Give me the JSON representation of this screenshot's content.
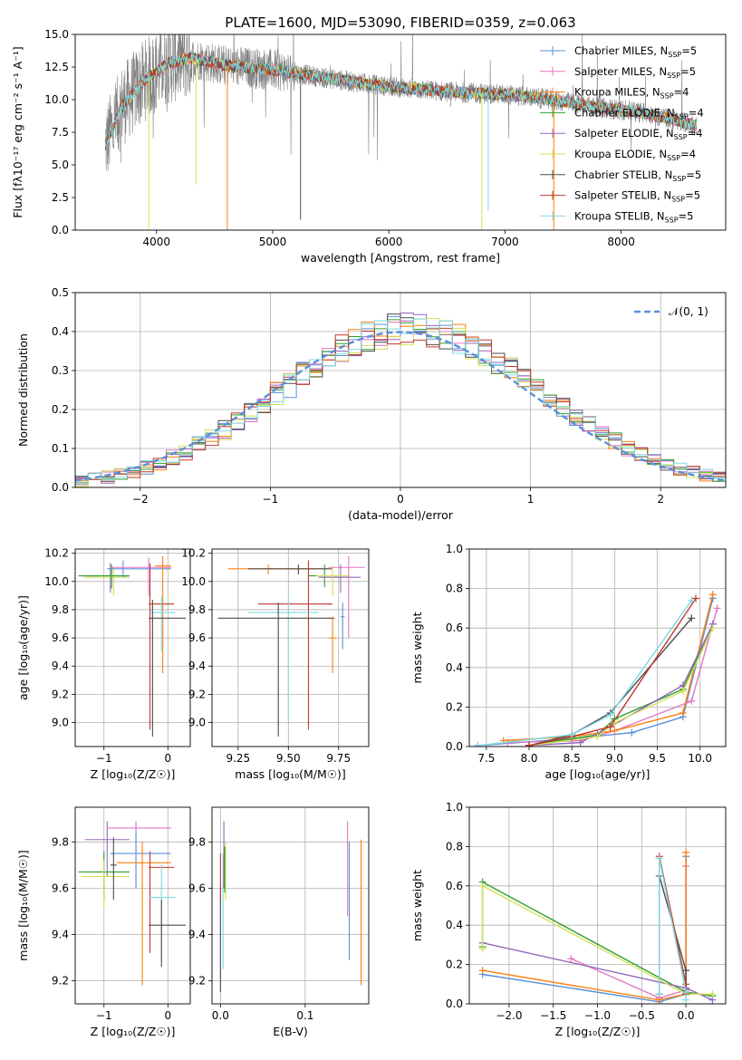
{
  "colors": {
    "Chabrier MILES": "#5b8fd9",
    "Salpeter MILES": "#e377c2",
    "Kroupa MILES": "#ff7f0e",
    "Chabrier ELODIE": "#2ca02c",
    "Salpeter ELODIE": "#9467bd",
    "Kroupa ELODIE": "#d4e157",
    "Chabrier STELIB": "#4d4d4d",
    "Salpeter STELIB": "#c0392b",
    "Kroupa STELIB": "#7fd8e0",
    "data": "#808080",
    "normal": "#5b8fd9"
  },
  "chart_data": [
    {
      "id": "spectrum",
      "type": "line",
      "title": "PLATE=1600, MJD=53090, FIBERID=0359, z=0.063",
      "xlabel": "wavelength [Angstrom, rest frame]",
      "ylabel": "Flux [fλ10⁻¹⁷ erg cm⁻² s⁻¹ A⁻¹]",
      "xlim": [
        3300,
        8900
      ],
      "ylim": [
        0,
        15
      ],
      "xticks": [
        4000,
        5000,
        6000,
        7000,
        8000
      ],
      "yticks": [
        0.0,
        2.5,
        5.0,
        7.5,
        10.0,
        12.5,
        15.0
      ],
      "xtick_labels": [
        "4000",
        "5000",
        "6000",
        "7000",
        "8000"
      ],
      "ytick_labels": [
        "0.0",
        "2.5",
        "5.0",
        "7.5",
        "10.0",
        "12.5",
        "15.0"
      ],
      "legend_placement": "upper-right",
      "legend": [
        {
          "label": "Chabrier MILES, N",
          "sub": "SSP",
          "tail": "=5",
          "model": "Chabrier MILES"
        },
        {
          "label": "Salpeter MILES, N",
          "sub": "SSP",
          "tail": "=5",
          "model": "Salpeter MILES"
        },
        {
          "label": "Kroupa MILES, N",
          "sub": "SSP",
          "tail": "=4",
          "model": "Kroupa MILES"
        },
        {
          "label": "Chabrier ELODIE, N",
          "sub": "SSP",
          "tail": "=4",
          "model": "Chabrier ELODIE"
        },
        {
          "label": "Salpeter ELODIE, N",
          "sub": "SSP",
          "tail": "=4",
          "model": "Salpeter ELODIE"
        },
        {
          "label": "Kroupa ELODIE, N",
          "sub": "SSP",
          "tail": "=4",
          "model": "Kroupa ELODIE"
        },
        {
          "label": "Chabrier STELIB, N",
          "sub": "SSP",
          "tail": "=5",
          "model": "Chabrier STELIB"
        },
        {
          "label": "Salpeter STELIB, N",
          "sub": "SSP",
          "tail": "=5",
          "model": "Salpeter STELIB"
        },
        {
          "label": "Kroupa STELIB, N",
          "sub": "SSP",
          "tail": "=5",
          "model": "Kroupa STELIB"
        }
      ],
      "continuum": {
        "x": [
          3560,
          3700,
          3900,
          4100,
          4300,
          4600,
          5000,
          5500,
          6000,
          6500,
          7000,
          7400,
          7800,
          8200,
          8650
        ],
        "y": [
          6.5,
          9.5,
          11.5,
          12.8,
          13.2,
          12.6,
          12.3,
          11.6,
          11.0,
          10.6,
          10.4,
          10.0,
          9.4,
          9.0,
          8.0
        ]
      },
      "absorption_dips": [
        {
          "x": 3933,
          "y": 0.0
        },
        {
          "x": 4340,
          "y": 3.5
        },
        {
          "x": 4610,
          "y": 0.0
        },
        {
          "x": 5240,
          "y": 0.8
        },
        {
          "x": 6800,
          "y": 0.0
        },
        {
          "x": 6855,
          "y": 1.5
        },
        {
          "x": 7420,
          "y": 0.0
        }
      ]
    },
    {
      "id": "residuals",
      "type": "histogram",
      "xlabel": "(data-model)/error",
      "ylabel": "Normed distribution",
      "xlim": [
        -2.5,
        2.5
      ],
      "ylim": [
        0,
        0.5
      ],
      "xticks": [
        -2,
        -1,
        0,
        1,
        2
      ],
      "yticks": [
        0.0,
        0.1,
        0.2,
        0.3,
        0.4,
        0.5
      ],
      "xtick_labels": [
        "−2",
        "−1",
        "0",
        "1",
        "2"
      ],
      "ytick_labels": [
        "0.0",
        "0.1",
        "0.2",
        "0.3",
        "0.4",
        "0.5"
      ],
      "legend_placement": "upper-right",
      "legend_label": "𝒩(0, 1)",
      "bin_width": 0.1
    },
    {
      "id": "age-z",
      "type": "errorbar",
      "xlabel": "Z [log₁₀(Z/Z☉)]",
      "ylabel": "age  [log₁₀(age/yr)]",
      "xlim": [
        -1.45,
        0.35
      ],
      "ylim": [
        8.83,
        10.23
      ],
      "xticks": [
        -1,
        0
      ],
      "yticks": [
        9.0,
        9.2,
        9.4,
        9.6,
        9.8,
        10.0,
        10.2
      ],
      "xtick_labels": [
        "−1",
        "0"
      ],
      "ytick_labels": [
        "9.0",
        "9.2",
        "9.4",
        "9.6",
        "9.8",
        "10.0",
        "10.2"
      ],
      "points": [
        {
          "model": "Salpeter ELODIE",
          "x": -0.9,
          "xlo": -1.4,
          "xhi": -0.6,
          "y": 10.04,
          "ylo": 9.92,
          "yhi": 10.13
        },
        {
          "model": "Kroupa ELODIE",
          "x": -0.85,
          "xlo": -1.3,
          "xhi": -0.6,
          "y": 10.03,
          "ylo": 9.9,
          "yhi": 10.1
        },
        {
          "model": "Chabrier ELODIE",
          "x": -0.88,
          "xlo": -1.35,
          "xhi": -0.62,
          "y": 10.04,
          "ylo": 9.95,
          "yhi": 10.12
        },
        {
          "model": "Chabrier MILES",
          "x": -0.7,
          "xlo": -0.95,
          "xhi": 0.05,
          "y": 10.09,
          "ylo": 10.03,
          "yhi": 10.15
        },
        {
          "model": "Salpeter MILES",
          "x": -0.3,
          "xlo": -0.9,
          "xhi": 0.05,
          "y": 10.1,
          "ylo": 9.9,
          "yhi": 10.17
        },
        {
          "model": "Kroupa MILES",
          "x": -0.08,
          "xlo": -0.2,
          "xhi": 0.05,
          "y": 10.11,
          "ylo": 9.35,
          "yhi": 10.18
        },
        {
          "model": "Salpeter STELIB",
          "x": -0.28,
          "xlo": -0.3,
          "xhi": 0.1,
          "y": 9.84,
          "ylo": 8.95,
          "yhi": 10.13
        },
        {
          "model": "Kroupa STELIB",
          "x": -0.1,
          "xlo": -0.3,
          "xhi": 0.12,
          "y": 9.78,
          "ylo": 9.5,
          "yhi": 9.9
        },
        {
          "model": "Chabrier STELIB",
          "x": -0.24,
          "xlo": -0.3,
          "xhi": 0.28,
          "y": 9.74,
          "ylo": 8.9,
          "yhi": 9.87
        }
      ]
    },
    {
      "id": "age-mass",
      "type": "errorbar",
      "xlabel": "mass [log₁₀(M/M☉)]",
      "ylabel": "",
      "xlim": [
        9.12,
        9.9
      ],
      "ylim": [
        8.83,
        10.23
      ],
      "xticks": [
        9.25,
        9.5,
        9.75
      ],
      "yticks": [
        9.0,
        9.2,
        9.4,
        9.6,
        9.8,
        10.0,
        10.2
      ],
      "xtick_labels": [
        "9.25",
        "9.50",
        "9.75"
      ],
      "ytick_labels": [
        "9.0",
        "9.2",
        "9.4",
        "9.6",
        "9.8",
        "10.0",
        "10.2"
      ],
      "points": [
        {
          "model": "Kroupa MILES",
          "x": 9.4,
          "xlo": 9.2,
          "xhi": 9.7,
          "y": 10.09,
          "ylo": 10.05,
          "yhi": 10.12
        },
        {
          "model": "Chabrier STELIB",
          "x": 9.55,
          "xlo": 9.3,
          "xhi": 9.72,
          "y": 10.09,
          "ylo": 10.05,
          "yhi": 10.12
        },
        {
          "model": "Salpeter MILES",
          "x": 9.8,
          "xlo": 9.7,
          "xhi": 9.88,
          "y": 10.1,
          "ylo": 9.6,
          "yhi": 10.18
        },
        {
          "model": "Chabrier ELODIE",
          "x": 9.68,
          "xlo": 9.6,
          "xhi": 9.8,
          "y": 10.04,
          "ylo": 9.96,
          "yhi": 10.12
        },
        {
          "model": "Salpeter ELODIE",
          "x": 9.76,
          "xlo": 9.65,
          "xhi": 9.86,
          "y": 10.03,
          "ylo": 9.92,
          "yhi": 10.12
        },
        {
          "model": "Kroupa ELODIE",
          "x": 9.72,
          "xlo": 9.64,
          "xhi": 9.8,
          "y": 10.04,
          "ylo": 9.9,
          "yhi": 10.11
        },
        {
          "model": "Salpeter STELIB",
          "x": 9.6,
          "xlo": 9.35,
          "xhi": 9.72,
          "y": 9.84,
          "ylo": 8.95,
          "yhi": 10.15
        },
        {
          "model": "Kroupa STELIB",
          "x": 9.5,
          "xlo": 9.3,
          "xhi": 9.65,
          "y": 9.78,
          "ylo": 9.02,
          "yhi": 9.9
        },
        {
          "model": "Chabrier STELIB",
          "x": 9.45,
          "xlo": 9.15,
          "xhi": 9.73,
          "y": 9.74,
          "ylo": 8.9,
          "yhi": 9.85
        },
        {
          "model": "Kroupa MILES",
          "x": 9.72,
          "xlo": 9.7,
          "xhi": 9.74,
          "y": 9.6,
          "ylo": 9.35,
          "yhi": 9.75
        },
        {
          "model": "Chabrier MILES",
          "x": 9.77,
          "xlo": 9.76,
          "xhi": 9.78,
          "y": 9.75,
          "ylo": 9.52,
          "yhi": 9.85
        }
      ]
    },
    {
      "id": "mw-age",
      "type": "line",
      "xlabel": "age  [log₁₀(age/yr)]",
      "ylabel": "mass weight",
      "xlim": [
        7.3,
        10.3
      ],
      "ylim": [
        0,
        1
      ],
      "xticks": [
        7.5,
        8.0,
        8.5,
        9.0,
        9.5,
        10.0
      ],
      "yticks": [
        0.0,
        0.2,
        0.4,
        0.6,
        0.8,
        1.0
      ],
      "xtick_labels": [
        "7.5",
        "8.0",
        "8.5",
        "9.0",
        "9.5",
        "10.0"
      ],
      "ytick_labels": [
        "0.0",
        "0.2",
        "0.4",
        "0.6",
        "0.8",
        "1.0"
      ],
      "series": [
        {
          "model": "Chabrier MILES",
          "x": [
            7.4,
            8.5,
            9.2,
            9.8,
            10.15
          ],
          "y": [
            0.005,
            0.04,
            0.07,
            0.15,
            0.75
          ]
        },
        {
          "model": "Salpeter MILES",
          "x": [
            7.75,
            8.6,
            9.0,
            9.9,
            10.2
          ],
          "y": [
            0.02,
            0.03,
            0.08,
            0.23,
            0.7
          ]
        },
        {
          "model": "Kroupa MILES",
          "x": [
            7.7,
            8.5,
            9.0,
            9.8,
            10.15
          ],
          "y": [
            0.03,
            0.05,
            0.08,
            0.17,
            0.77
          ]
        },
        {
          "model": "Chabrier ELODIE",
          "x": [
            8.0,
            8.8,
            9.0,
            9.8,
            10.15
          ],
          "y": [
            0.005,
            0.06,
            0.14,
            0.29,
            0.62
          ]
        },
        {
          "model": "Salpeter ELODIE",
          "x": [
            8.0,
            8.6,
            8.95,
            9.8,
            10.15
          ],
          "y": [
            0.005,
            0.02,
            0.1,
            0.31,
            0.62
          ]
        },
        {
          "model": "Kroupa ELODIE",
          "x": [
            8.0,
            8.8,
            9.0,
            9.8,
            10.15
          ],
          "y": [
            0.005,
            0.05,
            0.12,
            0.28,
            0.6
          ]
        },
        {
          "model": "Chabrier STELIB",
          "x": [
            8.0,
            8.5,
            8.95,
            9.9
          ],
          "y": [
            0.005,
            0.06,
            0.17,
            0.65
          ]
        },
        {
          "model": "Salpeter STELIB",
          "x": [
            8.0,
            8.5,
            8.95,
            9.95
          ],
          "y": [
            0.005,
            0.05,
            0.1,
            0.75
          ]
        },
        {
          "model": "Kroupa STELIB",
          "x": [
            7.4,
            8.5,
            8.95,
            9.9
          ],
          "y": [
            0.005,
            0.06,
            0.16,
            0.74
          ]
        }
      ]
    },
    {
      "id": "mass-z",
      "type": "errorbar",
      "xlabel": "Z [log₁₀(Z/Z☉)]",
      "ylabel": "mass [log₁₀(M/M☉)]",
      "xlim": [
        -1.45,
        0.35
      ],
      "ylim": [
        9.1,
        9.95
      ],
      "xticks": [
        -1,
        0
      ],
      "yticks": [
        9.2,
        9.4,
        9.6,
        9.8
      ],
      "xtick_labels": [
        "−1",
        "0"
      ],
      "ytick_labels": [
        "9.2",
        "9.4",
        "9.6",
        "9.8"
      ],
      "points": [
        {
          "model": "Salpeter ELODIE",
          "x": -0.95,
          "xlo": -1.3,
          "xhi": -0.6,
          "y": 9.81,
          "ylo": 9.65,
          "yhi": 9.89
        },
        {
          "model": "Salpeter MILES",
          "x": -0.5,
          "xlo": -0.95,
          "xhi": 0.05,
          "y": 9.86,
          "ylo": 9.6,
          "yhi": 9.89
        },
        {
          "model": "Chabrier MILES",
          "x": -0.5,
          "xlo": -0.9,
          "xhi": 0.05,
          "y": 9.75,
          "ylo": 9.6,
          "yhi": 9.85
        },
        {
          "model": "Kroupa MILES",
          "x": -0.4,
          "xlo": -0.8,
          "xhi": 0.05,
          "y": 9.71,
          "ylo": 9.18,
          "yhi": 9.8
        },
        {
          "model": "Chabrier ELODIE",
          "x": -1.0,
          "xlo": -1.4,
          "xhi": -0.6,
          "y": 9.67,
          "ylo": 9.55,
          "yhi": 9.76
        },
        {
          "model": "Kroupa ELODIE",
          "x": -1.0,
          "xlo": -1.35,
          "xhi": -0.6,
          "y": 9.65,
          "ylo": 9.52,
          "yhi": 9.72
        },
        {
          "model": "Chabrier STELIB",
          "x": -0.85,
          "xlo": -0.9,
          "xhi": -0.8,
          "y": 9.7,
          "ylo": 9.55,
          "yhi": 9.82
        },
        {
          "model": "Salpeter STELIB",
          "x": -0.28,
          "xlo": -0.3,
          "xhi": 0.1,
          "y": 9.69,
          "ylo": 9.32,
          "yhi": 9.76
        },
        {
          "model": "Kroupa STELIB",
          "x": -0.1,
          "xlo": -0.3,
          "xhi": 0.12,
          "y": 9.56,
          "ylo": 9.28,
          "yhi": 9.7
        },
        {
          "model": "Chabrier STELIB",
          "x": -0.1,
          "xlo": -0.3,
          "xhi": 0.28,
          "y": 9.44,
          "ylo": 9.26,
          "yhi": 9.55
        }
      ]
    },
    {
      "id": "mass-ebv",
      "type": "errorbar",
      "xlabel": "E(B-V)",
      "ylabel": "",
      "xlim": [
        -0.01,
        0.175
      ],
      "ylim": [
        9.1,
        9.95
      ],
      "xticks": [
        0.0,
        0.1
      ],
      "yticks": [
        9.2,
        9.4,
        9.6,
        9.8
      ],
      "xtick_labels": [
        "0.0",
        "0.1"
      ],
      "ytick_labels": [
        "9.2",
        "9.4",
        "9.6",
        "9.8"
      ],
      "points": [
        {
          "model": "Chabrier STELIB",
          "x": 0.0,
          "y": 9.38,
          "ylo": 9.15,
          "yhi": 9.6
        },
        {
          "model": "Salpeter STELIB",
          "x": 0.0,
          "y": 9.65,
          "ylo": 9.55,
          "yhi": 9.75
        },
        {
          "model": "Kroupa STELIB",
          "x": 0.003,
          "y": 9.5,
          "ylo": 9.25,
          "yhi": 9.75
        },
        {
          "model": "Salpeter ELODIE",
          "x": 0.004,
          "y": 9.8,
          "ylo": 9.6,
          "yhi": 9.89
        },
        {
          "model": "Kroupa ELODIE",
          "x": 0.006,
          "y": 9.65,
          "ylo": 9.55,
          "yhi": 9.8
        },
        {
          "model": "Chabrier ELODIE",
          "x": 0.005,
          "y": 9.7,
          "ylo": 9.58,
          "yhi": 9.78
        },
        {
          "model": "Salpeter MILES",
          "x": 0.15,
          "y": 9.68,
          "ylo": 9.48,
          "yhi": 9.89
        },
        {
          "model": "Chabrier MILES",
          "x": 0.152,
          "y": 9.55,
          "ylo": 9.29,
          "yhi": 9.8
        },
        {
          "model": "Kroupa MILES",
          "x": 0.166,
          "y": 9.5,
          "ylo": 9.18,
          "yhi": 9.81
        }
      ]
    },
    {
      "id": "mw-z",
      "type": "line",
      "xlabel": "Z [log₁₀(Z/Z☉)]",
      "ylabel": "mass weight",
      "xlim": [
        -2.45,
        0.45
      ],
      "ylim": [
        0,
        1
      ],
      "xticks": [
        -2.0,
        -1.5,
        -1.0,
        -0.5,
        0.0
      ],
      "yticks": [
        0.0,
        0.2,
        0.4,
        0.6,
        0.8,
        1.0
      ],
      "xtick_labels": [
        "−2.0",
        "−1.5",
        "−1.0",
        "−0.5",
        "0.0"
      ],
      "ytick_labels": [
        "0.0",
        "0.2",
        "0.4",
        "0.6",
        "0.8",
        "1.0"
      ],
      "series": [
        {
          "model": "Chabrier MILES",
          "x": [
            -2.3,
            -0.3,
            0.0,
            0.0
          ],
          "y": [
            0.15,
            0.01,
            0.05,
            0.75
          ]
        },
        {
          "model": "Salpeter MILES",
          "x": [
            -1.3,
            -0.3,
            0.0,
            0.0
          ],
          "y": [
            0.23,
            0.03,
            0.07,
            0.7
          ]
        },
        {
          "model": "Kroupa MILES",
          "x": [
            -2.3,
            -0.3,
            0.0,
            0.0
          ],
          "y": [
            0.17,
            0.02,
            0.05,
            0.77
          ]
        },
        {
          "model": "Chabrier ELODIE",
          "x": [
            -2.3,
            -2.3,
            0.0,
            0.3
          ],
          "y": [
            0.29,
            0.62,
            0.06,
            0.04
          ]
        },
        {
          "model": "Salpeter ELODIE",
          "x": [
            -2.3,
            0.0,
            0.3
          ],
          "y": [
            0.31,
            0.08,
            0.02
          ]
        },
        {
          "model": "Kroupa ELODIE",
          "x": [
            -2.3,
            -2.3,
            0.0,
            0.3
          ],
          "y": [
            0.28,
            0.6,
            0.05,
            0.05
          ]
        },
        {
          "model": "Chabrier STELIB",
          "x": [
            -0.3,
            -0.3,
            0.0,
            0.0
          ],
          "y": [
            0.05,
            0.65,
            0.17,
            0.05
          ]
        },
        {
          "model": "Salpeter STELIB",
          "x": [
            -0.3,
            -0.3,
            0.0,
            0.0
          ],
          "y": [
            0.05,
            0.75,
            0.1,
            0.05
          ]
        },
        {
          "model": "Kroupa STELIB",
          "x": [
            -0.3,
            -0.3,
            0.0,
            0.0
          ],
          "y": [
            0.05,
            0.74,
            0.06,
            0.02
          ]
        }
      ]
    }
  ]
}
